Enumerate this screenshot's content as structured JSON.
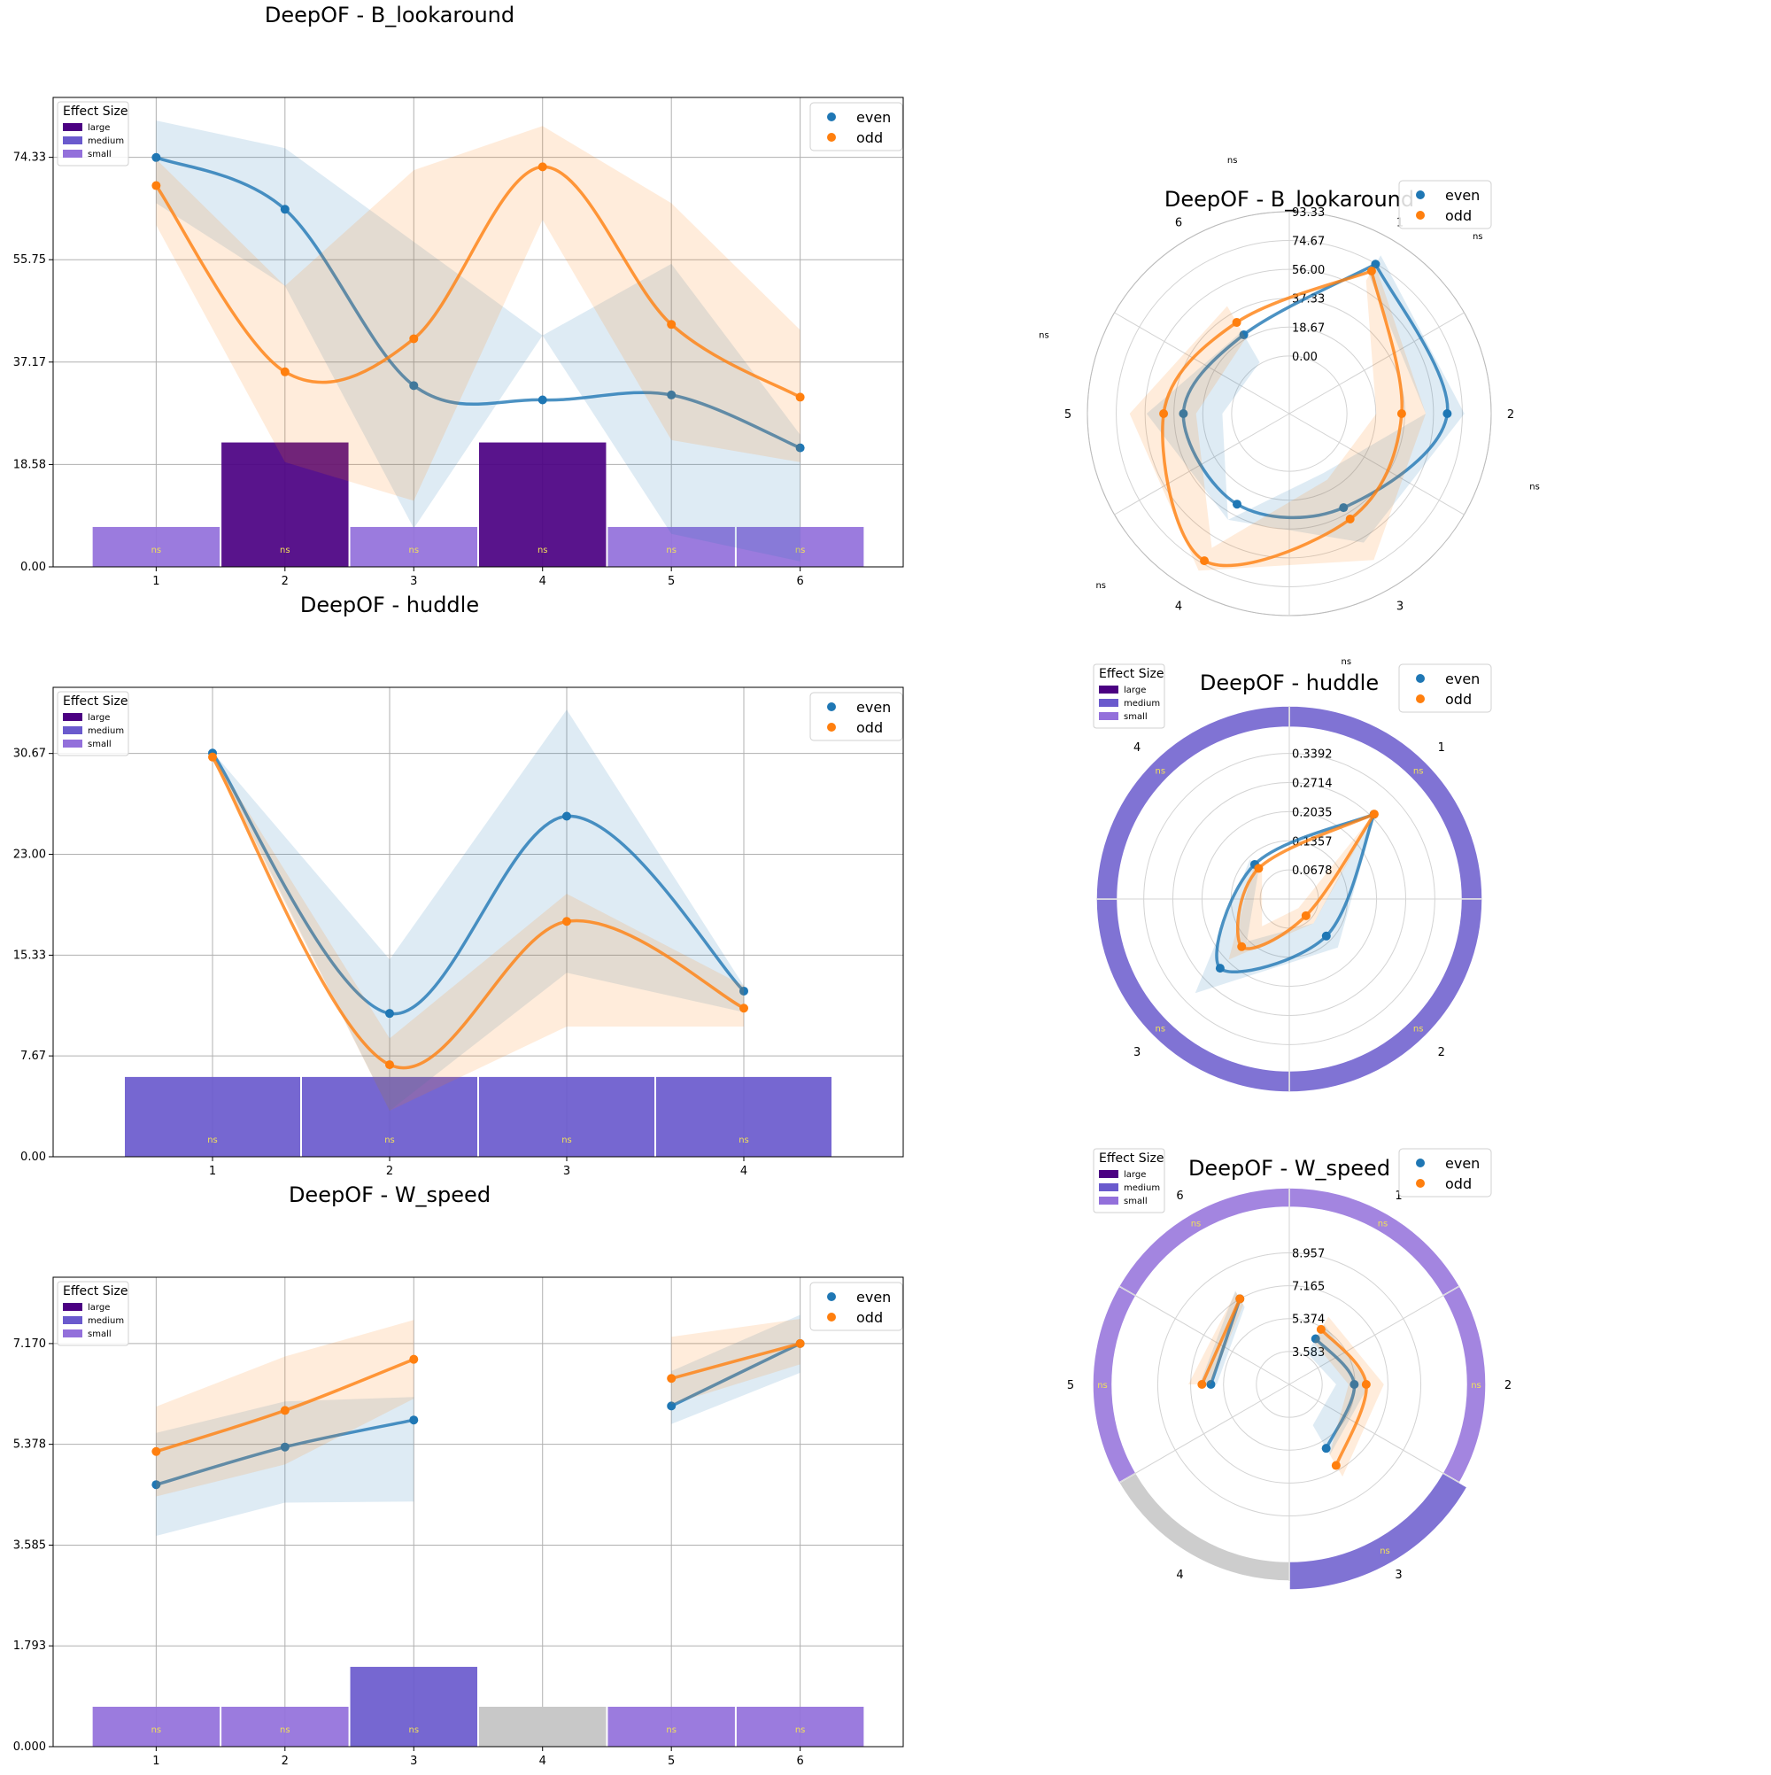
{
  "colors": {
    "even": "#1f77b4",
    "odd": "#ff7f0e",
    "large": "#4b0082",
    "medium": "#6a5acd",
    "small": "#9370db",
    "none": "#c8c8c8",
    "ns_text": "#f1e05a",
    "grid": "#b0b0b0"
  },
  "legend": {
    "even": "even",
    "odd": "odd"
  },
  "effect_size_legend": {
    "title": "Effect Size",
    "items": [
      "large",
      "medium",
      "small"
    ]
  },
  "chart_data": [
    {
      "id": "cart-lookaround",
      "type": "line",
      "title": "DeepOF - B_lookaround",
      "xlabel": "",
      "ylabel": "",
      "x": [
        1,
        2,
        3,
        4,
        5,
        6
      ],
      "yticks": [
        "0.00",
        "18.58",
        "37.17",
        "55.75",
        "74.33"
      ],
      "ylim": [
        0,
        85.2
      ],
      "xlim": [
        0.2,
        6.8
      ],
      "grid": true,
      "legend_position": "upper right",
      "series": [
        {
          "name": "even",
          "values": [
            74.3,
            64.9,
            32.9,
            30.3,
            31.2,
            21.6
          ],
          "lower": [
            66,
            51,
            7,
            42,
            6,
            1
          ],
          "upper": [
            81,
            76,
            59,
            42,
            55,
            24
          ]
        },
        {
          "name": "odd",
          "values": [
            69.2,
            35.4,
            41.4,
            72.6,
            44.0,
            30.8
          ],
          "lower": [
            62,
            19,
            12,
            63,
            23,
            19
          ],
          "upper": [
            74,
            51,
            72,
            80,
            66,
            43
          ]
        }
      ],
      "effect_bars": [
        {
          "x": 1,
          "size": "small",
          "label": "ns"
        },
        {
          "x": 2,
          "size": "large",
          "label": "ns"
        },
        {
          "x": 3,
          "size": "small",
          "label": "ns"
        },
        {
          "x": 4,
          "size": "large",
          "label": "ns"
        },
        {
          "x": 5,
          "size": "small",
          "label": "ns"
        },
        {
          "x": 6,
          "size": "small",
          "label": "ns"
        }
      ]
    },
    {
      "id": "cart-huddle",
      "type": "line",
      "title": "DeepOF - huddle",
      "xlabel": "",
      "ylabel": "",
      "x": [
        1,
        2,
        3,
        4
      ],
      "yticks": [
        "0.00",
        "7.67",
        "15.33",
        "23.00",
        "30.67"
      ],
      "ylim": [
        0,
        35.7
      ],
      "xlim": [
        0.1,
        4.9
      ],
      "grid": true,
      "legend_position": "upper right",
      "series": [
        {
          "name": "even",
          "values": [
            30.7,
            10.9,
            25.9,
            12.6
          ],
          "lower": [
            30.5,
            3.5,
            14.0,
            11.0
          ],
          "upper": [
            30.8,
            15.0,
            34.0,
            13.0
          ]
        },
        {
          "name": "odd",
          "values": [
            30.4,
            7.0,
            17.9,
            11.3
          ],
          "lower": [
            30.2,
            3.5,
            9.9,
            9.9
          ],
          "upper": [
            30.6,
            9.0,
            20.0,
            13.0
          ]
        }
      ],
      "effect_bars": [
        {
          "x": 1,
          "size": "medium",
          "label": "ns"
        },
        {
          "x": 2,
          "size": "medium",
          "label": "ns"
        },
        {
          "x": 3,
          "size": "medium",
          "label": "ns"
        },
        {
          "x": 4,
          "size": "medium",
          "label": "ns"
        }
      ]
    },
    {
      "id": "cart-wspeed",
      "type": "line",
      "title": "DeepOF - W_speed",
      "xlabel": "",
      "ylabel": "",
      "x": [
        1,
        2,
        3,
        4,
        5,
        6
      ],
      "yticks": [
        "0.000",
        "1.793",
        "3.585",
        "5.378",
        "7.170"
      ],
      "ylim": [
        0,
        8.35
      ],
      "xlim": [
        0.2,
        6.8
      ],
      "grid": true,
      "legend_position": "upper right",
      "series": [
        {
          "name": "even",
          "values": [
            4.66,
            5.33,
            5.81,
            null,
            6.06,
            7.17
          ],
          "lower": [
            3.75,
            4.34,
            4.36,
            null,
            5.74,
            6.65
          ],
          "upper": [
            5.58,
            6.14,
            6.22,
            null,
            6.68,
            7.68
          ]
        },
        {
          "name": "odd",
          "values": [
            5.25,
            5.98,
            6.89,
            null,
            6.55,
            7.17
          ],
          "lower": [
            4.45,
            5.02,
            6.19,
            null,
            6.09,
            6.8
          ],
          "upper": [
            6.05,
            6.94,
            7.59,
            null,
            7.29,
            7.61
          ]
        }
      ],
      "effect_bars": [
        {
          "x": 1,
          "size": "small",
          "label": "ns"
        },
        {
          "x": 2,
          "size": "small",
          "label": "ns"
        },
        {
          "x": 3,
          "size": "medium",
          "label": "ns"
        },
        {
          "x": 4,
          "size": "none",
          "label": ""
        },
        {
          "x": 5,
          "size": "small",
          "label": "ns"
        },
        {
          "x": 6,
          "size": "small",
          "label": "ns"
        }
      ]
    },
    {
      "id": "polar-lookaround",
      "type": "line",
      "projection": "polar",
      "title": "DeepOF - B_lookaround",
      "categories": [
        "1",
        "2",
        "3",
        "4",
        "5",
        "6"
      ],
      "rticks": [
        "0.00",
        "18.67",
        "37.33",
        "56.00",
        "74.67",
        "93.33"
      ],
      "rlim": [
        -37.33,
        93.33
      ],
      "grid": true,
      "legend_position": "upper right",
      "ring_labels": [
        "ns",
        "ns",
        "ns",
        "ns",
        "ns",
        "ns"
      ],
      "series": [
        {
          "name": "even",
          "values": [
            74.3,
            64.9,
            32.9,
            30.3,
            31.2,
            21.6
          ],
          "lower": [
            66,
            51,
            7,
            42,
            6,
            1
          ],
          "upper": [
            81,
            76,
            59,
            42,
            55,
            24
          ]
        },
        {
          "name": "odd",
          "values": [
            69.2,
            35.4,
            41.4,
            72.6,
            44.0,
            30.8
          ],
          "lower": [
            62,
            19,
            12,
            63,
            23,
            19
          ],
          "upper": [
            74,
            51,
            72,
            80,
            66,
            43
          ]
        }
      ]
    },
    {
      "id": "polar-huddle",
      "type": "line",
      "projection": "polar",
      "title": "DeepOF - huddle",
      "categories": [
        "1",
        "2",
        "3",
        "4"
      ],
      "rticks": [
        "0.0678",
        "0.1357",
        "0.2035",
        "0.2714",
        "0.3392"
      ],
      "rlim": [
        0,
        0.45
      ],
      "grid": true,
      "legend_position": "upper right",
      "series": [
        {
          "name": "even",
          "values": [
            0.279,
            0.122,
            0.228,
            0.114
          ],
          "lower": [
            0.272,
            0.08,
            0.14,
            0.1
          ],
          "upper": [
            0.286,
            0.16,
            0.31,
            0.13
          ]
        },
        {
          "name": "odd",
          "values": [
            0.28,
            0.055,
            0.157,
            0.101
          ],
          "lower": [
            0.273,
            0.03,
            0.09,
            0.09
          ],
          "upper": [
            0.287,
            0.08,
            0.2,
            0.115
          ]
        }
      ],
      "effect_ring": [
        {
          "category": "1",
          "size": "medium",
          "label": "ns"
        },
        {
          "category": "2",
          "size": "medium",
          "label": "ns"
        },
        {
          "category": "3",
          "size": "medium",
          "label": "ns"
        },
        {
          "category": "4",
          "size": "medium",
          "label": "ns"
        }
      ]
    },
    {
      "id": "polar-wspeed",
      "type": "line",
      "projection": "polar",
      "title": "DeepOF - W_speed",
      "categories": [
        "1",
        "2",
        "3",
        "4",
        "5",
        "6"
      ],
      "rticks": [
        "3.583",
        "5.374",
        "7.165",
        "8.957"
      ],
      "rlim": [
        1.79,
        12.5
      ],
      "grid": true,
      "legend_position": "upper right",
      "series": [
        {
          "name": "even",
          "values": [
            4.66,
            5.33,
            5.81,
            null,
            6.06,
            7.17
          ],
          "lower": [
            3.75,
            4.34,
            4.36,
            null,
            5.74,
            6.65
          ],
          "upper": [
            5.58,
            6.14,
            6.22,
            null,
            6.68,
            7.68
          ]
        },
        {
          "name": "odd",
          "values": [
            5.25,
            5.98,
            6.89,
            null,
            6.55,
            7.17
          ],
          "lower": [
            4.45,
            5.02,
            6.19,
            null,
            6.09,
            6.8
          ],
          "upper": [
            6.05,
            6.94,
            7.59,
            null,
            7.29,
            7.61
          ]
        }
      ],
      "effect_ring": [
        {
          "category": "1",
          "size": "small",
          "label": "ns"
        },
        {
          "category": "2",
          "size": "small",
          "label": "ns"
        },
        {
          "category": "3",
          "size": "medium",
          "label": "ns"
        },
        {
          "category": "4",
          "size": "none",
          "label": ""
        },
        {
          "category": "5",
          "size": "small",
          "label": "ns"
        },
        {
          "category": "6",
          "size": "small",
          "label": "ns"
        }
      ]
    }
  ]
}
